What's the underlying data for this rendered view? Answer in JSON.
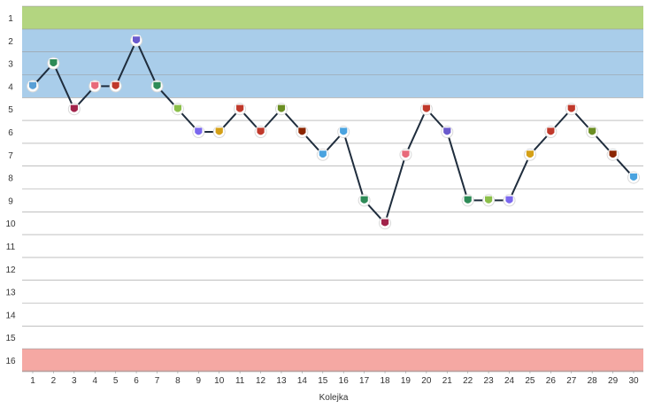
{
  "chart_data": {
    "type": "line",
    "title": "",
    "xlabel": "Kolejka",
    "ylabel": "",
    "x": [
      1,
      2,
      3,
      4,
      5,
      6,
      7,
      8,
      9,
      10,
      11,
      12,
      13,
      14,
      15,
      16,
      17,
      18,
      19,
      20,
      21,
      22,
      23,
      24,
      25,
      26,
      27,
      28,
      29,
      30
    ],
    "y_ticks": [
      1,
      2,
      3,
      4,
      5,
      6,
      7,
      8,
      9,
      10,
      11,
      12,
      13,
      14,
      15,
      16
    ],
    "y_inverted": true,
    "ylim": [
      0.5,
      16.5
    ],
    "xlim": [
      0.5,
      30.5
    ],
    "grid": true,
    "series": [
      {
        "values": [
          4,
          3,
          5,
          4,
          4,
          2,
          4,
          5,
          6,
          6,
          5,
          6,
          5,
          6,
          7,
          6,
          9,
          10,
          7,
          5,
          6,
          9,
          9,
          9,
          7,
          6,
          5,
          6,
          7,
          8
        ],
        "color": "#1f2d3d"
      }
    ],
    "zones": [
      {
        "from": 1,
        "to": 1,
        "color": "#b3d580"
      },
      {
        "from": 2,
        "to": 4,
        "color": "#a9cdea"
      },
      {
        "from": 16,
        "to": 16,
        "color": "#f5a8a3"
      }
    ],
    "marker_colors": [
      "#5aa0d6",
      "#2e8b57",
      "#a1234a",
      "#e86a7a",
      "#c0392b",
      "#6a5acd",
      "#2e8b57",
      "#8bbf4a",
      "#7b68ee",
      "#d4a017",
      "#c0392b",
      "#c0392b",
      "#6b8e23",
      "#8b2500",
      "#4aa3df",
      "#4aa3df",
      "#2e8b57",
      "#a1234a",
      "#e86a7a",
      "#c0392b",
      "#6a5acd",
      "#2e8b57",
      "#8bbf4a",
      "#7b68ee",
      "#d4a017",
      "#c0392b",
      "#c0392b",
      "#6b8e23",
      "#8b2500",
      "#4aa3df"
    ]
  }
}
